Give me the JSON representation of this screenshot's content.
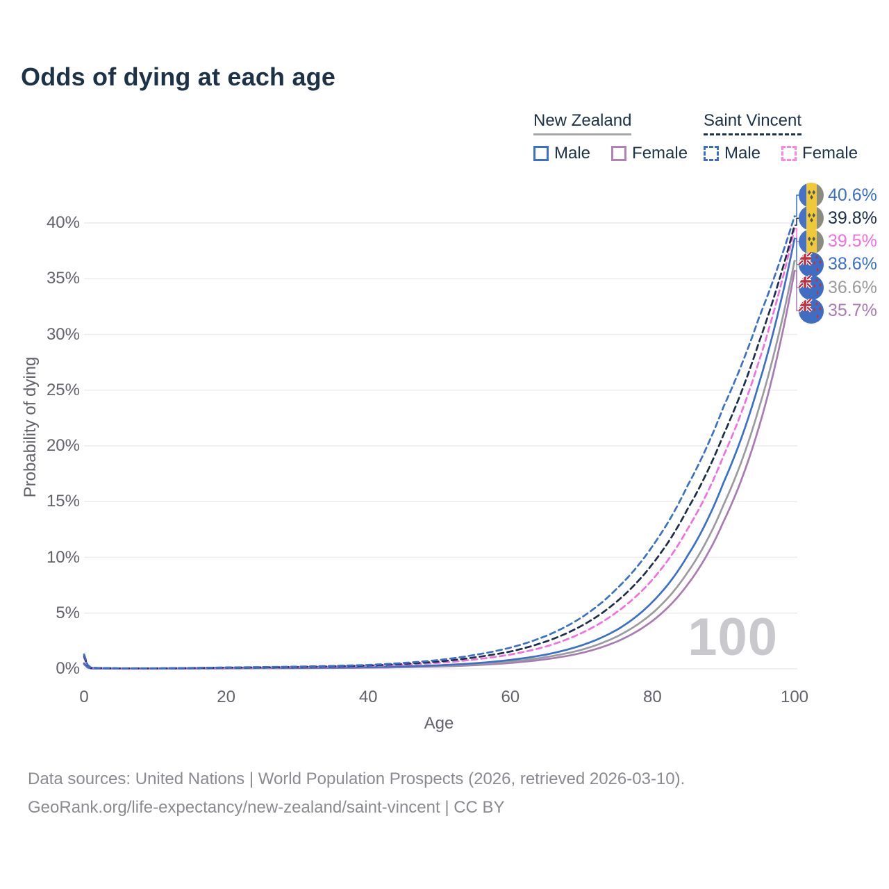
{
  "title": "Odds of dying at each age",
  "legend": {
    "group1": {
      "label": "New Zealand",
      "male": "Male",
      "female": "Female"
    },
    "group2": {
      "label": "Saint Vincent",
      "male": "Male",
      "female": "Female"
    }
  },
  "watermark": "100",
  "footer": {
    "line1": "Data sources: United Nations | World Population Prospects (2026, retrieved 2026-03-10).",
    "line2": "GeoRank.org/life-expectancy/new-zealand/saint-vincent | CC BY"
  },
  "colors": {
    "male_blue": "#3a70c6",
    "total_navy": "#1d2e49",
    "female_pink": "#f36fdf",
    "nz_total_gray": "#9b9b9d",
    "nz_female_purple": "#a87cb2",
    "gridline": "#ececef",
    "axis_text": "#62626a",
    "title_text": "#1d3147",
    "watermark_gray": "#c8c8cd"
  },
  "chart_data": {
    "type": "line",
    "title": "Odds of dying at each age",
    "xlabel": "Age",
    "ylabel": "Probability of dying",
    "xlim": [
      0,
      100
    ],
    "ylim_pct": [
      0,
      43
    ],
    "grid": "horizontal-only",
    "legend_position": "top-right",
    "x_ticks": [
      0,
      20,
      40,
      60,
      80,
      100
    ],
    "y_ticks_pct": [
      0,
      5,
      10,
      15,
      20,
      25,
      30,
      35,
      40
    ],
    "y_tick_labels": [
      "0%",
      "5%",
      "10%",
      "15%",
      "20%",
      "25%",
      "30%",
      "35%",
      "40%"
    ],
    "anchor_ages": [
      0,
      1,
      5,
      10,
      20,
      30,
      40,
      50,
      55,
      60,
      65,
      70,
      75,
      80,
      85,
      90,
      95,
      100
    ],
    "series": [
      {
        "id": "nz-female",
        "name": "New Zealand Female",
        "style": "solid",
        "color": "#a87cb2",
        "flag": "nz",
        "end_label": "35.7%",
        "label_color": "#a87cb2",
        "values_pct": [
          0.4,
          0.03,
          0.015,
          0.015,
          0.04,
          0.06,
          0.1,
          0.21,
          0.33,
          0.53,
          0.86,
          1.42,
          2.45,
          4.3,
          7.6,
          13.2,
          21.7,
          35.7
        ]
      },
      {
        "id": "nz-total",
        "name": "New Zealand Both sexes",
        "style": "solid",
        "color": "#9b9b9d",
        "flag": "nz",
        "end_label": "36.6%",
        "label_color": "#9b9b9d",
        "values_pct": [
          0.45,
          0.035,
          0.018,
          0.018,
          0.05,
          0.075,
          0.125,
          0.26,
          0.41,
          0.65,
          1.05,
          1.7,
          2.9,
          5.0,
          8.7,
          14.7,
          23.4,
          36.6
        ]
      },
      {
        "id": "nz-male",
        "name": "New Zealand Male",
        "style": "solid",
        "color": "#3a70c6",
        "flag": "nz",
        "end_label": "38.6%",
        "label_color": "#3a70c6",
        "values_pct": [
          0.5,
          0.04,
          0.02,
          0.02,
          0.06,
          0.09,
          0.15,
          0.32,
          0.5,
          0.8,
          1.28,
          2.1,
          3.5,
          6.0,
          10.2,
          16.7,
          25.6,
          38.6
        ]
      },
      {
        "id": "sv-female",
        "name": "Saint Vincent Female",
        "style": "dashed",
        "color": "#f36fdf",
        "flag": "sv",
        "end_label": "39.5%",
        "label_color": "#f36fdf",
        "values_pct": [
          1.0,
          0.08,
          0.04,
          0.04,
          0.09,
          0.14,
          0.26,
          0.54,
          0.84,
          1.28,
          2.0,
          3.2,
          5.1,
          8.0,
          12.6,
          19.1,
          27.6,
          39.5
        ]
      },
      {
        "id": "sv-total",
        "name": "Saint Vincent Both sexes",
        "style": "dashed",
        "color": "#1d2e49",
        "flag": "sv",
        "end_label": "39.8%",
        "label_color": "#1d2e49",
        "values_pct": [
          1.15,
          0.09,
          0.045,
          0.045,
          0.11,
          0.17,
          0.3,
          0.66,
          1.03,
          1.55,
          2.45,
          3.85,
          6.05,
          9.4,
          14.4,
          21.0,
          29.3,
          39.8
        ]
      },
      {
        "id": "sv-male",
        "name": "Saint Vincent Male",
        "style": "dashed",
        "color": "#3a70c6",
        "flag": "sv",
        "end_label": "40.6%",
        "label_color": "#3a70c6",
        "values_pct": [
          1.3,
          0.1,
          0.05,
          0.05,
          0.13,
          0.2,
          0.35,
          0.8,
          1.25,
          1.9,
          2.95,
          4.6,
          7.2,
          11.0,
          16.5,
          23.5,
          31.5,
          40.6
        ]
      }
    ],
    "end_label_order_top_to_bottom": [
      "sv-male",
      "sv-total",
      "sv-female",
      "nz-male",
      "nz-total",
      "nz-female"
    ]
  }
}
